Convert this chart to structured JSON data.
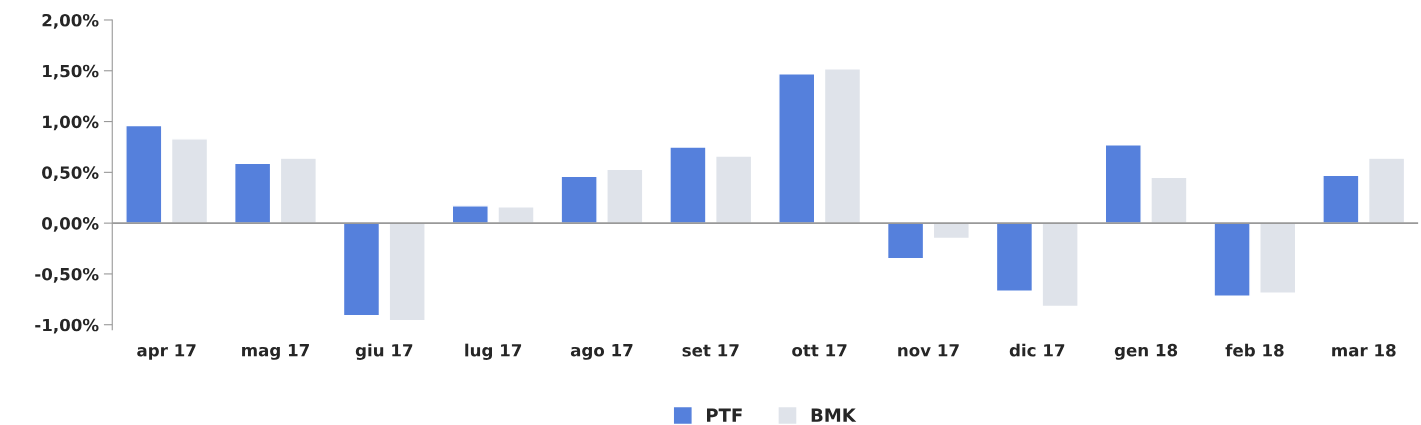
{
  "chart_data": {
    "type": "bar",
    "categories": [
      "apr 17",
      "mag 17",
      "giu 17",
      "lug 17",
      "ago 17",
      "set 17",
      "ott 17",
      "nov 17",
      "dic 17",
      "gen 18",
      "feb 18",
      "mar 18"
    ],
    "series": [
      {
        "name": "PTF",
        "color": "#5580dc",
        "values": [
          0.96,
          0.59,
          -0.91,
          0.17,
          0.46,
          0.75,
          1.47,
          -0.35,
          -0.67,
          0.77,
          -0.72,
          0.47
        ]
      },
      {
        "name": "BMK",
        "color": "#dfe3ea",
        "values": [
          0.83,
          0.64,
          -0.96,
          0.16,
          0.53,
          0.66,
          1.52,
          -0.15,
          -0.82,
          0.45,
          -0.69,
          0.64
        ]
      }
    ],
    "ylim": [
      -1.05,
      2.0
    ],
    "yticks": [
      {
        "value": -1.0,
        "label": "-1,00%"
      },
      {
        "value": -0.5,
        "label": "-0,50%"
      },
      {
        "value": 0,
        "label": "0,00%"
      },
      {
        "value": 0.5,
        "label": "0,50%"
      },
      {
        "value": 1.0,
        "label": "1,00%"
      },
      {
        "value": 1.5,
        "label": "1,50%"
      },
      {
        "value": 2.0,
        "label": "2,00%"
      }
    ],
    "ref_lines": [
      {
        "axis": "y",
        "value": 0,
        "color": "#999999"
      }
    ],
    "grid": false,
    "legend": "bottom"
  }
}
